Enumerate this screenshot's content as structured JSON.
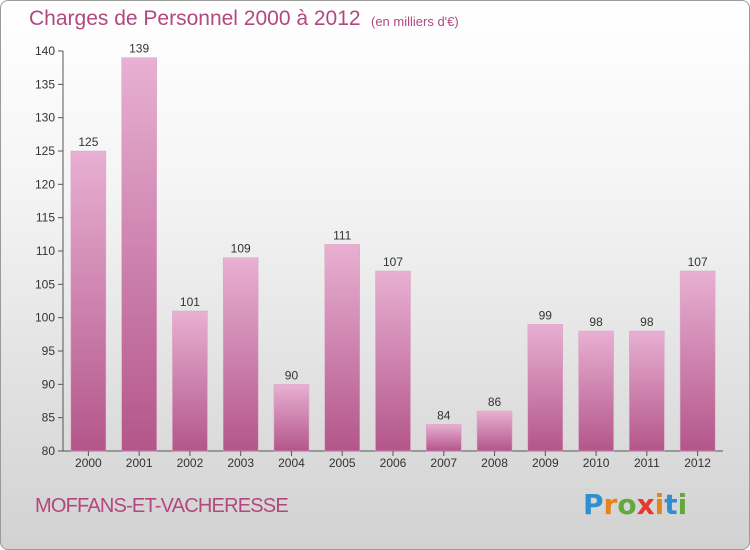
{
  "title": "Charges de Personnel 2000 à 2012",
  "subtitle": "(en milliers d'€)",
  "commune": "MOFFANS-ET-VACHERESSE",
  "logo": {
    "letters": [
      "P",
      "r",
      "o",
      "x",
      "i",
      "t",
      "i"
    ],
    "colors": [
      "#2f8fd0",
      "#e5841c",
      "#63a83a",
      "#e23b2e",
      "#e5841c",
      "#2f8fd0",
      "#63a83a"
    ]
  },
  "colors": {
    "bar_light": "#e8b0d2",
    "bar_dark": "#b3568a",
    "text_accent": "#b3477f"
  },
  "chart_data": {
    "type": "bar",
    "categories": [
      "2000",
      "2001",
      "2002",
      "2003",
      "2004",
      "2005",
      "2006",
      "2007",
      "2008",
      "2009",
      "2010",
      "2011",
      "2012"
    ],
    "values": [
      125,
      139,
      101,
      109,
      90,
      111,
      107,
      84,
      86,
      99,
      98,
      98,
      107
    ],
    "ylim": [
      80,
      140
    ],
    "yticks": [
      80,
      85,
      90,
      95,
      100,
      105,
      110,
      115,
      120,
      125,
      130,
      135,
      140
    ],
    "grid": false
  }
}
